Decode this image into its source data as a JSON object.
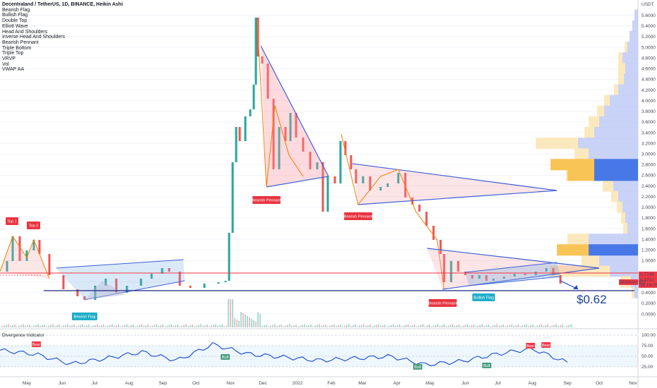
{
  "header": {
    "title": "Decentraland / TetherUS, 1D, BINANCE, Heikin Ashi",
    "overlays": [
      "Bearish Flag",
      "Bullish Flag",
      "Double Top",
      "Elliott Wave",
      "Head And Shoulders",
      "Inverse Head And Shoulders",
      "Bearish Pennant",
      "Triple Bottom",
      "Triple Top",
      "VRVP",
      "Vol",
      "VWAP AA"
    ],
    "currency": "USDT"
  },
  "price_axis": {
    "ticks": [
      "5.6000",
      "5.4000",
      "5.2000",
      "5.0000",
      "4.8000",
      "4.6000",
      "4.4000",
      "4.2000",
      "4.0000",
      "3.8000",
      "3.6000",
      "3.4000",
      "3.2000",
      "3.0000",
      "2.8000",
      "2.6000",
      "2.4000",
      "2.2000",
      "2.0000",
      "1.8000",
      "1.6000",
      "1.4000",
      "1.2000",
      "1.0000",
      "0.6000",
      "0.4000",
      "0.2000",
      "0.0000"
    ],
    "price_labels": [
      {
        "text": "0.7749",
        "color": "#f23645"
      },
      {
        "text": "0.7731",
        "color": "#f23645"
      },
      {
        "text": "06:19:05",
        "color": "#f23645"
      }
    ],
    "symbol_tag": "MANAUSDT"
  },
  "time_axis": {
    "ticks": [
      "May",
      "Jun",
      "Jul",
      "Aug",
      "Sep",
      "Oct",
      "Nov",
      "Dec",
      "2022",
      "Feb",
      "Mar",
      "Apr",
      "May",
      "Jun",
      "Jul",
      "Aug",
      "Sep",
      "Oct",
      "Nov"
    ]
  },
  "annotations": {
    "top1": "Top 1",
    "top2": "Top 2",
    "bearish_flag": "Bearish Flag",
    "bearish_pennant_1": "Bearish Pennant",
    "bearish_pennant_2": "Bearish Pennant",
    "bearish_pennant_3": "Bearish Pennant",
    "bullish_flag": "Bullish Flag",
    "target_price": "$0.62"
  },
  "indicator": {
    "title": "Divergence Indicator",
    "ticks": [
      "100.00",
      "75.00",
      "50.00",
      "25.00"
    ],
    "tags": [
      "Bear",
      "Bull",
      "Bull",
      "Bull",
      "Bear",
      "Bear"
    ],
    "colors": {
      "bear": "#f23645",
      "bull": "#4c9e7f",
      "line": "#1848cc"
    }
  },
  "colors": {
    "up": "#26a69a",
    "down": "#ef5350",
    "pattern_line": "#3c5fd6",
    "zigzag": "#f57c00",
    "tag_red": "#e8343f",
    "tag_cyan": "#1faec9"
  },
  "chart_data": {
    "type": "candlestick",
    "heikin_ashi": true,
    "series": [
      {
        "name": "MANAUSDT",
        "x": [
          "2021-04",
          "2021-05",
          "2021-06",
          "2021-07",
          "2021-08",
          "2021-09",
          "2021-10",
          "2021-11",
          "2021-11-25",
          "2021-12",
          "2022-01",
          "2022-02",
          "2022-03",
          "2022-04",
          "2022-05",
          "2022-06",
          "2022-07",
          "2022-08",
          "2022-09"
        ],
        "values": [
          1.2,
          1.5,
          0.8,
          0.6,
          0.9,
          1.1,
          0.75,
          3.5,
          5.6,
          3.0,
          2.9,
          2.3,
          2.6,
          2.3,
          1.0,
          0.9,
          1.0,
          1.05,
          0.77
        ]
      }
    ],
    "current_price": 0.7731,
    "target": 0.62,
    "rsi": [
      64,
      55,
      32,
      45,
      60,
      40,
      78,
      55,
      48,
      40,
      45,
      50,
      30,
      38,
      55,
      68,
      35
    ]
  }
}
